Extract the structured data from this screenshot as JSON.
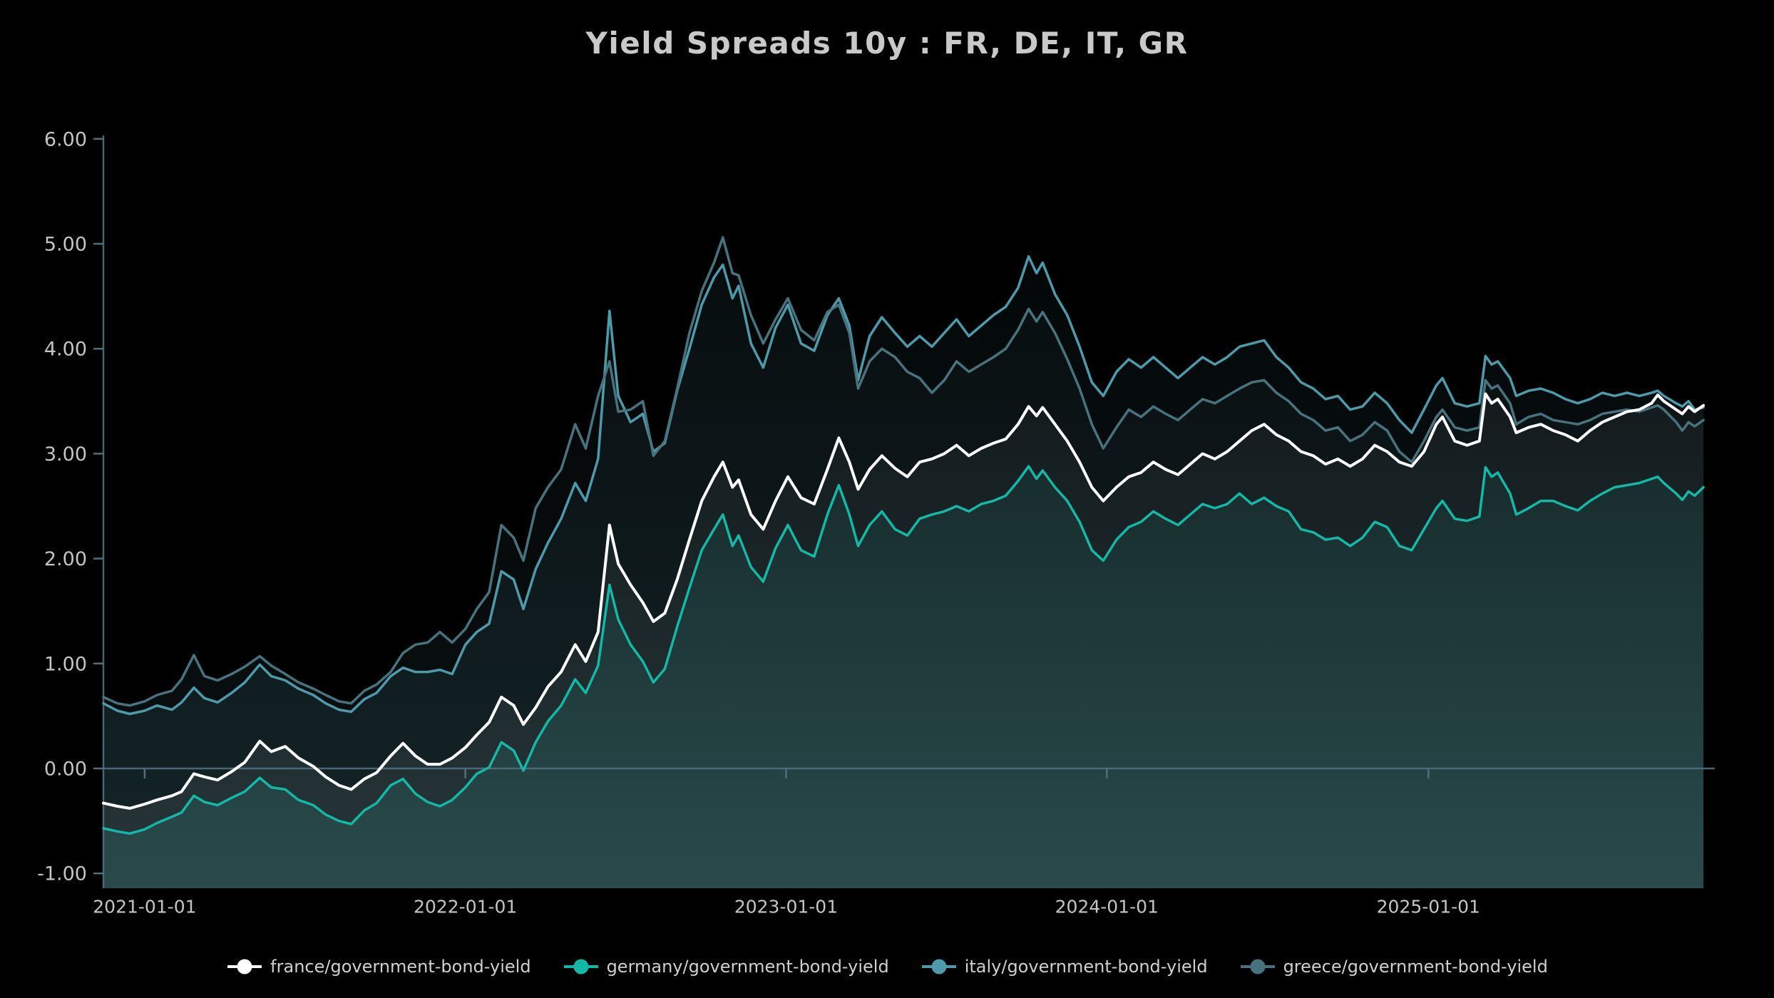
{
  "page": {
    "background": "#000000"
  },
  "header": {
    "title": "Yield Spreads 10y : FR, DE, IT, GR"
  },
  "chart_data": {
    "type": "line",
    "title": "Yield Spreads 10y : FR, DE, IT, GR",
    "xlabel": "",
    "ylabel": "",
    "ylim": [
      -1.0,
      6.0
    ],
    "grid": false,
    "legend_position": "bottom",
    "background_color": "#000000",
    "axis_color": "#4f6f7e",
    "text_color": "#c4c4c4",
    "x_range": [
      "2020-11-15",
      "2025-11-10"
    ],
    "yticks": [
      {
        "value": 6,
        "label": "6.00"
      },
      {
        "value": 5,
        "label": "5.00"
      },
      {
        "value": 4,
        "label": "4.00"
      },
      {
        "value": 3,
        "label": "3.00"
      },
      {
        "value": 2,
        "label": "2.00"
      },
      {
        "value": 1,
        "label": "1.00"
      },
      {
        "value": 0,
        "label": "0.00"
      },
      {
        "value": -1,
        "label": "-1.00"
      }
    ],
    "xticks": [
      {
        "date": "2021-01-01",
        "label": "2021-01-01"
      },
      {
        "date": "2022-01-01",
        "label": "2022-01-01"
      },
      {
        "date": "2023-01-01",
        "label": "2023-01-01"
      },
      {
        "date": "2024-01-01",
        "label": "2024-01-01"
      },
      {
        "date": "2025-01-01",
        "label": "2025-01-01"
      }
    ],
    "dates": [
      "2020-11-15",
      "2020-12-01",
      "2020-12-15",
      "2021-01-01",
      "2021-01-15",
      "2021-02-01",
      "2021-02-12",
      "2021-02-26",
      "2021-03-10",
      "2021-03-25",
      "2021-04-10",
      "2021-04-25",
      "2021-05-12",
      "2021-05-25",
      "2021-06-10",
      "2021-06-25",
      "2021-07-12",
      "2021-07-26",
      "2021-08-10",
      "2021-08-24",
      "2021-09-08",
      "2021-09-22",
      "2021-10-08",
      "2021-10-22",
      "2021-11-05",
      "2021-11-19",
      "2021-12-03",
      "2021-12-17",
      "2022-01-01",
      "2022-01-14",
      "2022-01-28",
      "2022-02-11",
      "2022-02-25",
      "2022-03-08",
      "2022-03-22",
      "2022-04-05",
      "2022-04-20",
      "2022-05-06",
      "2022-05-18",
      "2022-06-01",
      "2022-06-14",
      "2022-06-24",
      "2022-07-08",
      "2022-07-22",
      "2022-08-03",
      "2022-08-16",
      "2022-08-30",
      "2022-09-13",
      "2022-09-27",
      "2022-10-11",
      "2022-10-21",
      "2022-11-01",
      "2022-11-08",
      "2022-11-22",
      "2022-12-06",
      "2022-12-20",
      "2023-01-03",
      "2023-01-18",
      "2023-02-02",
      "2023-02-17",
      "2023-03-02",
      "2023-03-14",
      "2023-03-24",
      "2023-04-06",
      "2023-04-20",
      "2023-05-05",
      "2023-05-19",
      "2023-06-02",
      "2023-06-16",
      "2023-06-30",
      "2023-07-14",
      "2023-07-28",
      "2023-08-11",
      "2023-08-25",
      "2023-09-08",
      "2023-09-22",
      "2023-10-04",
      "2023-10-13",
      "2023-10-20",
      "2023-11-03",
      "2023-11-17",
      "2023-12-01",
      "2023-12-15",
      "2023-12-28",
      "2024-01-12",
      "2024-01-26",
      "2024-02-09",
      "2024-02-23",
      "2024-03-08",
      "2024-03-22",
      "2024-04-05",
      "2024-04-19",
      "2024-05-03",
      "2024-05-17",
      "2024-05-31",
      "2024-06-14",
      "2024-06-28",
      "2024-07-12",
      "2024-07-26",
      "2024-08-09",
      "2024-08-23",
      "2024-09-06",
      "2024-09-20",
      "2024-10-04",
      "2024-10-18",
      "2024-11-01",
      "2024-11-15",
      "2024-11-29",
      "2024-12-13",
      "2024-12-27",
      "2025-01-10",
      "2025-01-17",
      "2025-01-31",
      "2025-02-14",
      "2025-02-28",
      "2025-03-07",
      "2025-03-14",
      "2025-03-21",
      "2025-04-04",
      "2025-04-11",
      "2025-04-25",
      "2025-05-09",
      "2025-05-23",
      "2025-06-06",
      "2025-06-20",
      "2025-07-04",
      "2025-07-18",
      "2025-08-01",
      "2025-08-15",
      "2025-08-29",
      "2025-09-12",
      "2025-09-19",
      "2025-09-26",
      "2025-10-10",
      "2025-10-17",
      "2025-10-24",
      "2025-10-31",
      "2025-11-10"
    ],
    "series": [
      {
        "name": "france/government-bond-yield",
        "color": "#ffffff",
        "line_width": 4,
        "values": [
          -0.33,
          -0.36,
          -0.38,
          -0.34,
          -0.3,
          -0.26,
          -0.22,
          -0.05,
          -0.08,
          -0.11,
          -0.03,
          0.06,
          0.26,
          0.16,
          0.21,
          0.1,
          0.02,
          -0.08,
          -0.16,
          -0.2,
          -0.1,
          -0.04,
          0.12,
          0.24,
          0.12,
          0.04,
          0.04,
          0.1,
          0.2,
          0.32,
          0.44,
          0.68,
          0.6,
          0.42,
          0.58,
          0.78,
          0.92,
          1.18,
          1.02,
          1.3,
          2.32,
          1.95,
          1.75,
          1.58,
          1.4,
          1.48,
          1.8,
          2.18,
          2.55,
          2.78,
          2.92,
          2.68,
          2.75,
          2.42,
          2.28,
          2.55,
          2.78,
          2.58,
          2.52,
          2.85,
          3.15,
          2.92,
          2.66,
          2.85,
          2.98,
          2.86,
          2.78,
          2.92,
          2.95,
          3.0,
          3.08,
          2.98,
          3.05,
          3.1,
          3.14,
          3.28,
          3.45,
          3.36,
          3.44,
          3.28,
          3.12,
          2.92,
          2.68,
          2.55,
          2.68,
          2.78,
          2.82,
          2.92,
          2.85,
          2.8,
          2.9,
          3.0,
          2.95,
          3.02,
          3.12,
          3.22,
          3.28,
          3.18,
          3.12,
          3.02,
          2.98,
          2.9,
          2.95,
          2.88,
          2.95,
          3.08,
          3.02,
          2.92,
          2.88,
          3.02,
          3.28,
          3.35,
          3.12,
          3.08,
          3.12,
          3.57,
          3.48,
          3.52,
          3.35,
          3.2,
          3.25,
          3.28,
          3.22,
          3.18,
          3.12,
          3.22,
          3.3,
          3.35,
          3.4,
          3.42,
          3.48,
          3.56,
          3.5,
          3.42,
          3.38,
          3.45,
          3.4,
          3.46
        ]
      },
      {
        "name": "germany/government-bond-yield",
        "color": "#14b8a6",
        "line_width": 3.5,
        "values": [
          -0.57,
          -0.6,
          -0.62,
          -0.58,
          -0.52,
          -0.46,
          -0.42,
          -0.26,
          -0.32,
          -0.35,
          -0.28,
          -0.22,
          -0.09,
          -0.18,
          -0.2,
          -0.3,
          -0.35,
          -0.44,
          -0.5,
          -0.53,
          -0.4,
          -0.33,
          -0.16,
          -0.1,
          -0.24,
          -0.32,
          -0.36,
          -0.3,
          -0.18,
          -0.05,
          0.01,
          0.25,
          0.17,
          -0.02,
          0.25,
          0.45,
          0.6,
          0.85,
          0.72,
          0.98,
          1.75,
          1.42,
          1.18,
          1.02,
          0.82,
          0.95,
          1.35,
          1.72,
          2.08,
          2.28,
          2.42,
          2.12,
          2.22,
          1.92,
          1.78,
          2.1,
          2.32,
          2.08,
          2.02,
          2.42,
          2.7,
          2.42,
          2.12,
          2.32,
          2.45,
          2.28,
          2.22,
          2.38,
          2.42,
          2.45,
          2.5,
          2.45,
          2.52,
          2.55,
          2.6,
          2.74,
          2.88,
          2.76,
          2.84,
          2.68,
          2.55,
          2.35,
          2.08,
          1.98,
          2.18,
          2.3,
          2.35,
          2.45,
          2.38,
          2.32,
          2.42,
          2.52,
          2.48,
          2.52,
          2.62,
          2.52,
          2.58,
          2.5,
          2.45,
          2.28,
          2.25,
          2.18,
          2.2,
          2.12,
          2.2,
          2.35,
          2.3,
          2.12,
          2.08,
          2.28,
          2.48,
          2.55,
          2.38,
          2.36,
          2.4,
          2.87,
          2.78,
          2.82,
          2.62,
          2.42,
          2.48,
          2.55,
          2.55,
          2.5,
          2.46,
          2.55,
          2.62,
          2.68,
          2.7,
          2.72,
          2.76,
          2.78,
          2.72,
          2.62,
          2.56,
          2.64,
          2.6,
          2.68
        ]
      },
      {
        "name": "italy/government-bond-yield",
        "color": "#4d9aab",
        "line_width": 3.5,
        "values": [
          0.62,
          0.55,
          0.52,
          0.55,
          0.6,
          0.56,
          0.63,
          0.77,
          0.67,
          0.63,
          0.72,
          0.82,
          0.99,
          0.88,
          0.84,
          0.76,
          0.7,
          0.62,
          0.56,
          0.54,
          0.66,
          0.72,
          0.88,
          0.96,
          0.92,
          0.92,
          0.94,
          0.9,
          1.18,
          1.3,
          1.38,
          1.88,
          1.8,
          1.52,
          1.9,
          2.15,
          2.38,
          2.72,
          2.55,
          2.95,
          4.36,
          3.55,
          3.3,
          3.38,
          3.02,
          3.1,
          3.6,
          4.0,
          4.42,
          4.68,
          4.8,
          4.48,
          4.6,
          4.05,
          3.82,
          4.2,
          4.42,
          4.05,
          3.98,
          4.32,
          4.48,
          4.22,
          3.7,
          4.12,
          4.3,
          4.15,
          4.02,
          4.12,
          4.02,
          4.15,
          4.28,
          4.12,
          4.22,
          4.32,
          4.4,
          4.58,
          4.88,
          4.72,
          4.82,
          4.52,
          4.32,
          4.02,
          3.68,
          3.55,
          3.78,
          3.9,
          3.82,
          3.92,
          3.82,
          3.72,
          3.82,
          3.92,
          3.85,
          3.92,
          4.02,
          4.05,
          4.08,
          3.92,
          3.82,
          3.68,
          3.62,
          3.52,
          3.55,
          3.42,
          3.45,
          3.58,
          3.48,
          3.32,
          3.2,
          3.42,
          3.65,
          3.72,
          3.48,
          3.45,
          3.48,
          3.93,
          3.85,
          3.88,
          3.72,
          3.55,
          3.6,
          3.62,
          3.58,
          3.52,
          3.48,
          3.52,
          3.58,
          3.55,
          3.58,
          3.55,
          3.58,
          3.6,
          3.55,
          3.48,
          3.45,
          3.5,
          3.42,
          3.44
        ]
      },
      {
        "name": "greece/government-bond-yield",
        "color": "#47737f",
        "line_width": 3.5,
        "values": [
          0.68,
          0.62,
          0.6,
          0.64,
          0.7,
          0.74,
          0.85,
          1.08,
          0.88,
          0.84,
          0.9,
          0.97,
          1.07,
          0.98,
          0.9,
          0.82,
          0.76,
          0.7,
          0.64,
          0.62,
          0.74,
          0.8,
          0.92,
          1.1,
          1.18,
          1.2,
          1.3,
          1.2,
          1.33,
          1.52,
          1.68,
          2.32,
          2.2,
          1.98,
          2.48,
          2.68,
          2.85,
          3.28,
          3.05,
          3.55,
          3.88,
          3.4,
          3.42,
          3.5,
          2.98,
          3.12,
          3.62,
          4.15,
          4.55,
          4.82,
          5.06,
          4.72,
          4.7,
          4.32,
          4.05,
          4.28,
          4.48,
          4.18,
          4.08,
          4.35,
          4.42,
          4.15,
          3.62,
          3.88,
          4.0,
          3.92,
          3.78,
          3.72,
          3.58,
          3.7,
          3.88,
          3.78,
          3.85,
          3.92,
          4.0,
          4.18,
          4.38,
          4.26,
          4.35,
          4.15,
          3.9,
          3.62,
          3.28,
          3.05,
          3.25,
          3.42,
          3.35,
          3.45,
          3.38,
          3.32,
          3.42,
          3.52,
          3.48,
          3.55,
          3.62,
          3.68,
          3.7,
          3.58,
          3.5,
          3.38,
          3.32,
          3.22,
          3.25,
          3.12,
          3.18,
          3.3,
          3.22,
          3.02,
          2.92,
          3.12,
          3.35,
          3.42,
          3.25,
          3.22,
          3.25,
          3.7,
          3.62,
          3.65,
          3.48,
          3.28,
          3.35,
          3.38,
          3.32,
          3.3,
          3.28,
          3.32,
          3.38,
          3.4,
          3.42,
          3.4,
          3.44,
          3.46,
          3.42,
          3.3,
          3.22,
          3.3,
          3.26,
          3.32
        ]
      }
    ]
  }
}
